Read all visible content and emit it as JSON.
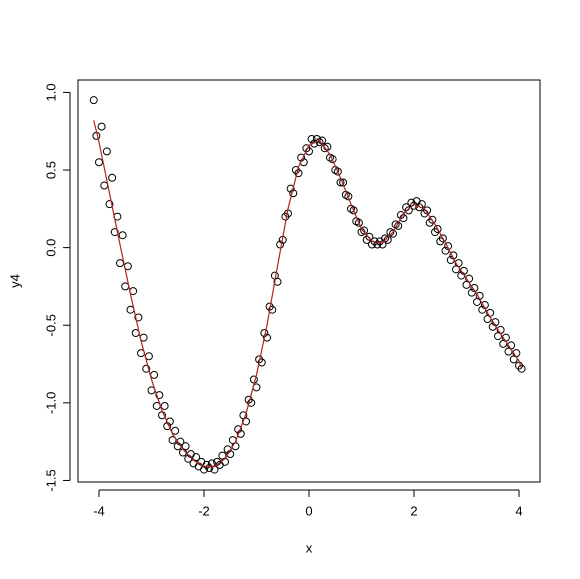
{
  "chart_data": {
    "type": "scatter",
    "xlabel": "x",
    "ylabel": "y4",
    "xlim": [
      -4.4,
      4.4
    ],
    "ylim": [
      -1.51,
      1.08
    ],
    "xticks": [
      -4,
      -2,
      0,
      2,
      4
    ],
    "yticks": [
      -1.5,
      {
        "value": -1,
        "label": "-1.0"
      },
      -0.5,
      {
        "value": 0,
        "label": "0.0"
      },
      0.5,
      {
        "value": 1,
        "label": "1.0"
      }
    ],
    "color": "#000000",
    "x": [
      -4.1,
      -4.05,
      -4,
      -3.95,
      -3.9,
      -3.85,
      -3.8,
      -3.75,
      -3.7,
      -3.65,
      -3.6,
      -3.55,
      -3.5,
      -3.45,
      -3.4,
      -3.35,
      -3.3,
      -3.25,
      -3.2,
      -3.15,
      -3.1,
      -3.05,
      -3,
      -2.95,
      -2.9,
      -2.85,
      -2.8,
      -2.75,
      -2.7,
      -2.65,
      -2.6,
      -2.55,
      -2.5,
      -2.45,
      -2.4,
      -2.35,
      -2.3,
      -2.25,
      -2.2,
      -2.15,
      -2.1,
      -2.05,
      -2,
      -1.95,
      -1.9,
      -1.85,
      -1.8,
      -1.75,
      -1.7,
      -1.65,
      -1.6,
      -1.55,
      -1.5,
      -1.45,
      -1.4,
      -1.35,
      -1.3,
      -1.25,
      -1.2,
      -1.15,
      -1.1,
      -1.05,
      -1,
      -0.95,
      -0.9,
      -0.85,
      -0.8,
      -0.75,
      -0.7,
      -0.65,
      -0.6,
      -0.55,
      -0.5,
      -0.45,
      -0.4,
      -0.35,
      -0.3,
      -0.25,
      -0.2,
      -0.15,
      -0.1,
      -0.05,
      0,
      0.05,
      0.1,
      0.15,
      0.2,
      0.25,
      0.3,
      0.35,
      0.4,
      0.45,
      0.5,
      0.55,
      0.6,
      0.65,
      0.7,
      0.75,
      0.8,
      0.85,
      0.9,
      0.95,
      1,
      1.05,
      1.1,
      1.15,
      1.2,
      1.25,
      1.3,
      1.35,
      1.4,
      1.45,
      1.5,
      1.55,
      1.6,
      1.65,
      1.7,
      1.75,
      1.8,
      1.85,
      1.9,
      1.95,
      2,
      2.05,
      2.1,
      2.15,
      2.2,
      2.25,
      2.3,
      2.35,
      2.4,
      2.45,
      2.5,
      2.55,
      2.6,
      2.65,
      2.7,
      2.75,
      2.8,
      2.85,
      2.9,
      2.95,
      3,
      3.05,
      3.1,
      3.15,
      3.2,
      3.25,
      3.3,
      3.35,
      3.4,
      3.45,
      3.5,
      3.55,
      3.6,
      3.65,
      3.7,
      3.75,
      3.8,
      3.85,
      3.9,
      3.95,
      4,
      4.05
    ],
    "y": [
      0.95,
      0.72,
      0.55,
      0.78,
      0.4,
      0.62,
      0.28,
      0.45,
      0.1,
      0.2,
      -0.1,
      0.08,
      -0.25,
      -0.12,
      -0.4,
      -0.28,
      -0.55,
      -0.45,
      -0.68,
      -0.58,
      -0.78,
      -0.7,
      -0.92,
      -0.82,
      -1.02,
      -0.95,
      -1.08,
      -1.02,
      -1.15,
      -1.12,
      -1.24,
      -1.18,
      -1.28,
      -1.25,
      -1.32,
      -1.28,
      -1.36,
      -1.33,
      -1.39,
      -1.35,
      -1.41,
      -1.38,
      -1.43,
      -1.4,
      -1.42,
      -1.39,
      -1.43,
      -1.38,
      -1.4,
      -1.34,
      -1.38,
      -1.3,
      -1.33,
      -1.24,
      -1.28,
      -1.17,
      -1.2,
      -1.08,
      -1.12,
      -0.98,
      -1,
      -0.85,
      -0.9,
      -0.72,
      -0.74,
      -0.55,
      -0.58,
      -0.38,
      -0.4,
      -0.18,
      -0.22,
      0.02,
      0.05,
      0.2,
      0.22,
      0.38,
      0.35,
      0.5,
      0.48,
      0.58,
      0.55,
      0.64,
      0.62,
      0.7,
      0.67,
      0.7,
      0.68,
      0.69,
      0.64,
      0.65,
      0.58,
      0.57,
      0.5,
      0.49,
      0.42,
      0.42,
      0.34,
      0.33,
      0.25,
      0.24,
      0.17,
      0.16,
      0.1,
      0.11,
      0.05,
      0.07,
      0.02,
      0.04,
      0.02,
      0.04,
      0.02,
      0.06,
      0.05,
      0.1,
      0.09,
      0.15,
      0.14,
      0.21,
      0.19,
      0.26,
      0.24,
      0.29,
      0.27,
      0.3,
      0.26,
      0.28,
      0.22,
      0.24,
      0.16,
      0.18,
      0.1,
      0.12,
      0.04,
      0.06,
      -0.02,
      0.01,
      -0.08,
      -0.05,
      -0.14,
      -0.1,
      -0.18,
      -0.15,
      -0.24,
      -0.2,
      -0.29,
      -0.26,
      -0.35,
      -0.31,
      -0.4,
      -0.37,
      -0.46,
      -0.42,
      -0.51,
      -0.48,
      -0.57,
      -0.53,
      -0.62,
      -0.58,
      -0.67,
      -0.63,
      -0.72,
      -0.68,
      -0.76,
      -0.78
    ],
    "fit": {
      "color": "#b22222",
      "x": [
        -4.1,
        -4,
        -3.8,
        -3.6,
        -3.4,
        -3.2,
        -3,
        -2.8,
        -2.6,
        -2.4,
        -2.2,
        -2,
        -1.8,
        -1.6,
        -1.4,
        -1.2,
        -1,
        -0.8,
        -0.6,
        -0.4,
        -0.2,
        0,
        0.2,
        0.4,
        0.6,
        0.8,
        1,
        1.2,
        1.4,
        1.6,
        1.8,
        2,
        2.2,
        2.4,
        2.6,
        2.8,
        3,
        3.2,
        3.4,
        3.6,
        3.8,
        4,
        4.05
      ],
      "y": [
        0.82,
        0.68,
        0.35,
        0.02,
        -0.3,
        -0.6,
        -0.85,
        -1.05,
        -1.2,
        -1.3,
        -1.37,
        -1.41,
        -1.41,
        -1.36,
        -1.25,
        -1.07,
        -0.82,
        -0.5,
        -0.12,
        0.25,
        0.52,
        0.66,
        0.69,
        0.6,
        0.45,
        0.28,
        0.12,
        0.04,
        0.03,
        0.1,
        0.22,
        0.28,
        0.25,
        0.15,
        0.03,
        -0.1,
        -0.2,
        -0.3,
        -0.42,
        -0.53,
        -0.63,
        -0.73,
        -0.78
      ]
    }
  }
}
